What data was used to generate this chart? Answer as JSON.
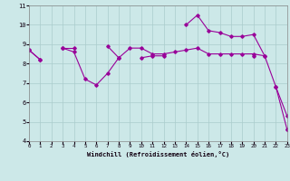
{
  "xlabel": "Windchill (Refroidissement éolien,°C)",
  "bg_color": "#cce8e8",
  "line_color": "#990099",
  "ylim": [
    4,
    11
  ],
  "xlim": [
    0,
    23
  ],
  "yticks": [
    4,
    5,
    6,
    7,
    8,
    9,
    10,
    11
  ],
  "xticks": [
    0,
    1,
    2,
    3,
    4,
    5,
    6,
    7,
    8,
    9,
    10,
    11,
    12,
    13,
    14,
    15,
    16,
    17,
    18,
    19,
    20,
    21,
    22,
    23
  ],
  "series": [
    [
      8.7,
      8.2,
      null,
      8.8,
      8.8,
      null,
      null,
      8.9,
      8.3,
      null,
      8.3,
      8.4,
      8.4,
      null,
      10.0,
      10.5,
      9.7,
      9.6,
      9.4,
      9.4,
      9.5,
      8.4,
      6.8,
      5.3
    ],
    [
      8.7,
      8.2,
      null,
      8.8,
      8.6,
      7.2,
      6.9,
      7.5,
      8.3,
      8.8,
      8.8,
      8.5,
      8.5,
      8.6,
      8.7,
      8.8,
      8.5,
      8.5,
      8.5,
      8.5,
      8.5,
      8.4,
      null,
      null
    ],
    [
      null,
      null,
      null,
      null,
      null,
      null,
      null,
      null,
      null,
      null,
      null,
      null,
      null,
      null,
      null,
      null,
      null,
      null,
      null,
      null,
      8.4,
      null,
      null,
      4.6
    ],
    [
      null,
      null,
      null,
      null,
      null,
      null,
      null,
      null,
      null,
      null,
      null,
      null,
      null,
      null,
      null,
      null,
      null,
      null,
      null,
      null,
      null,
      null,
      6.8,
      4.6
    ]
  ]
}
